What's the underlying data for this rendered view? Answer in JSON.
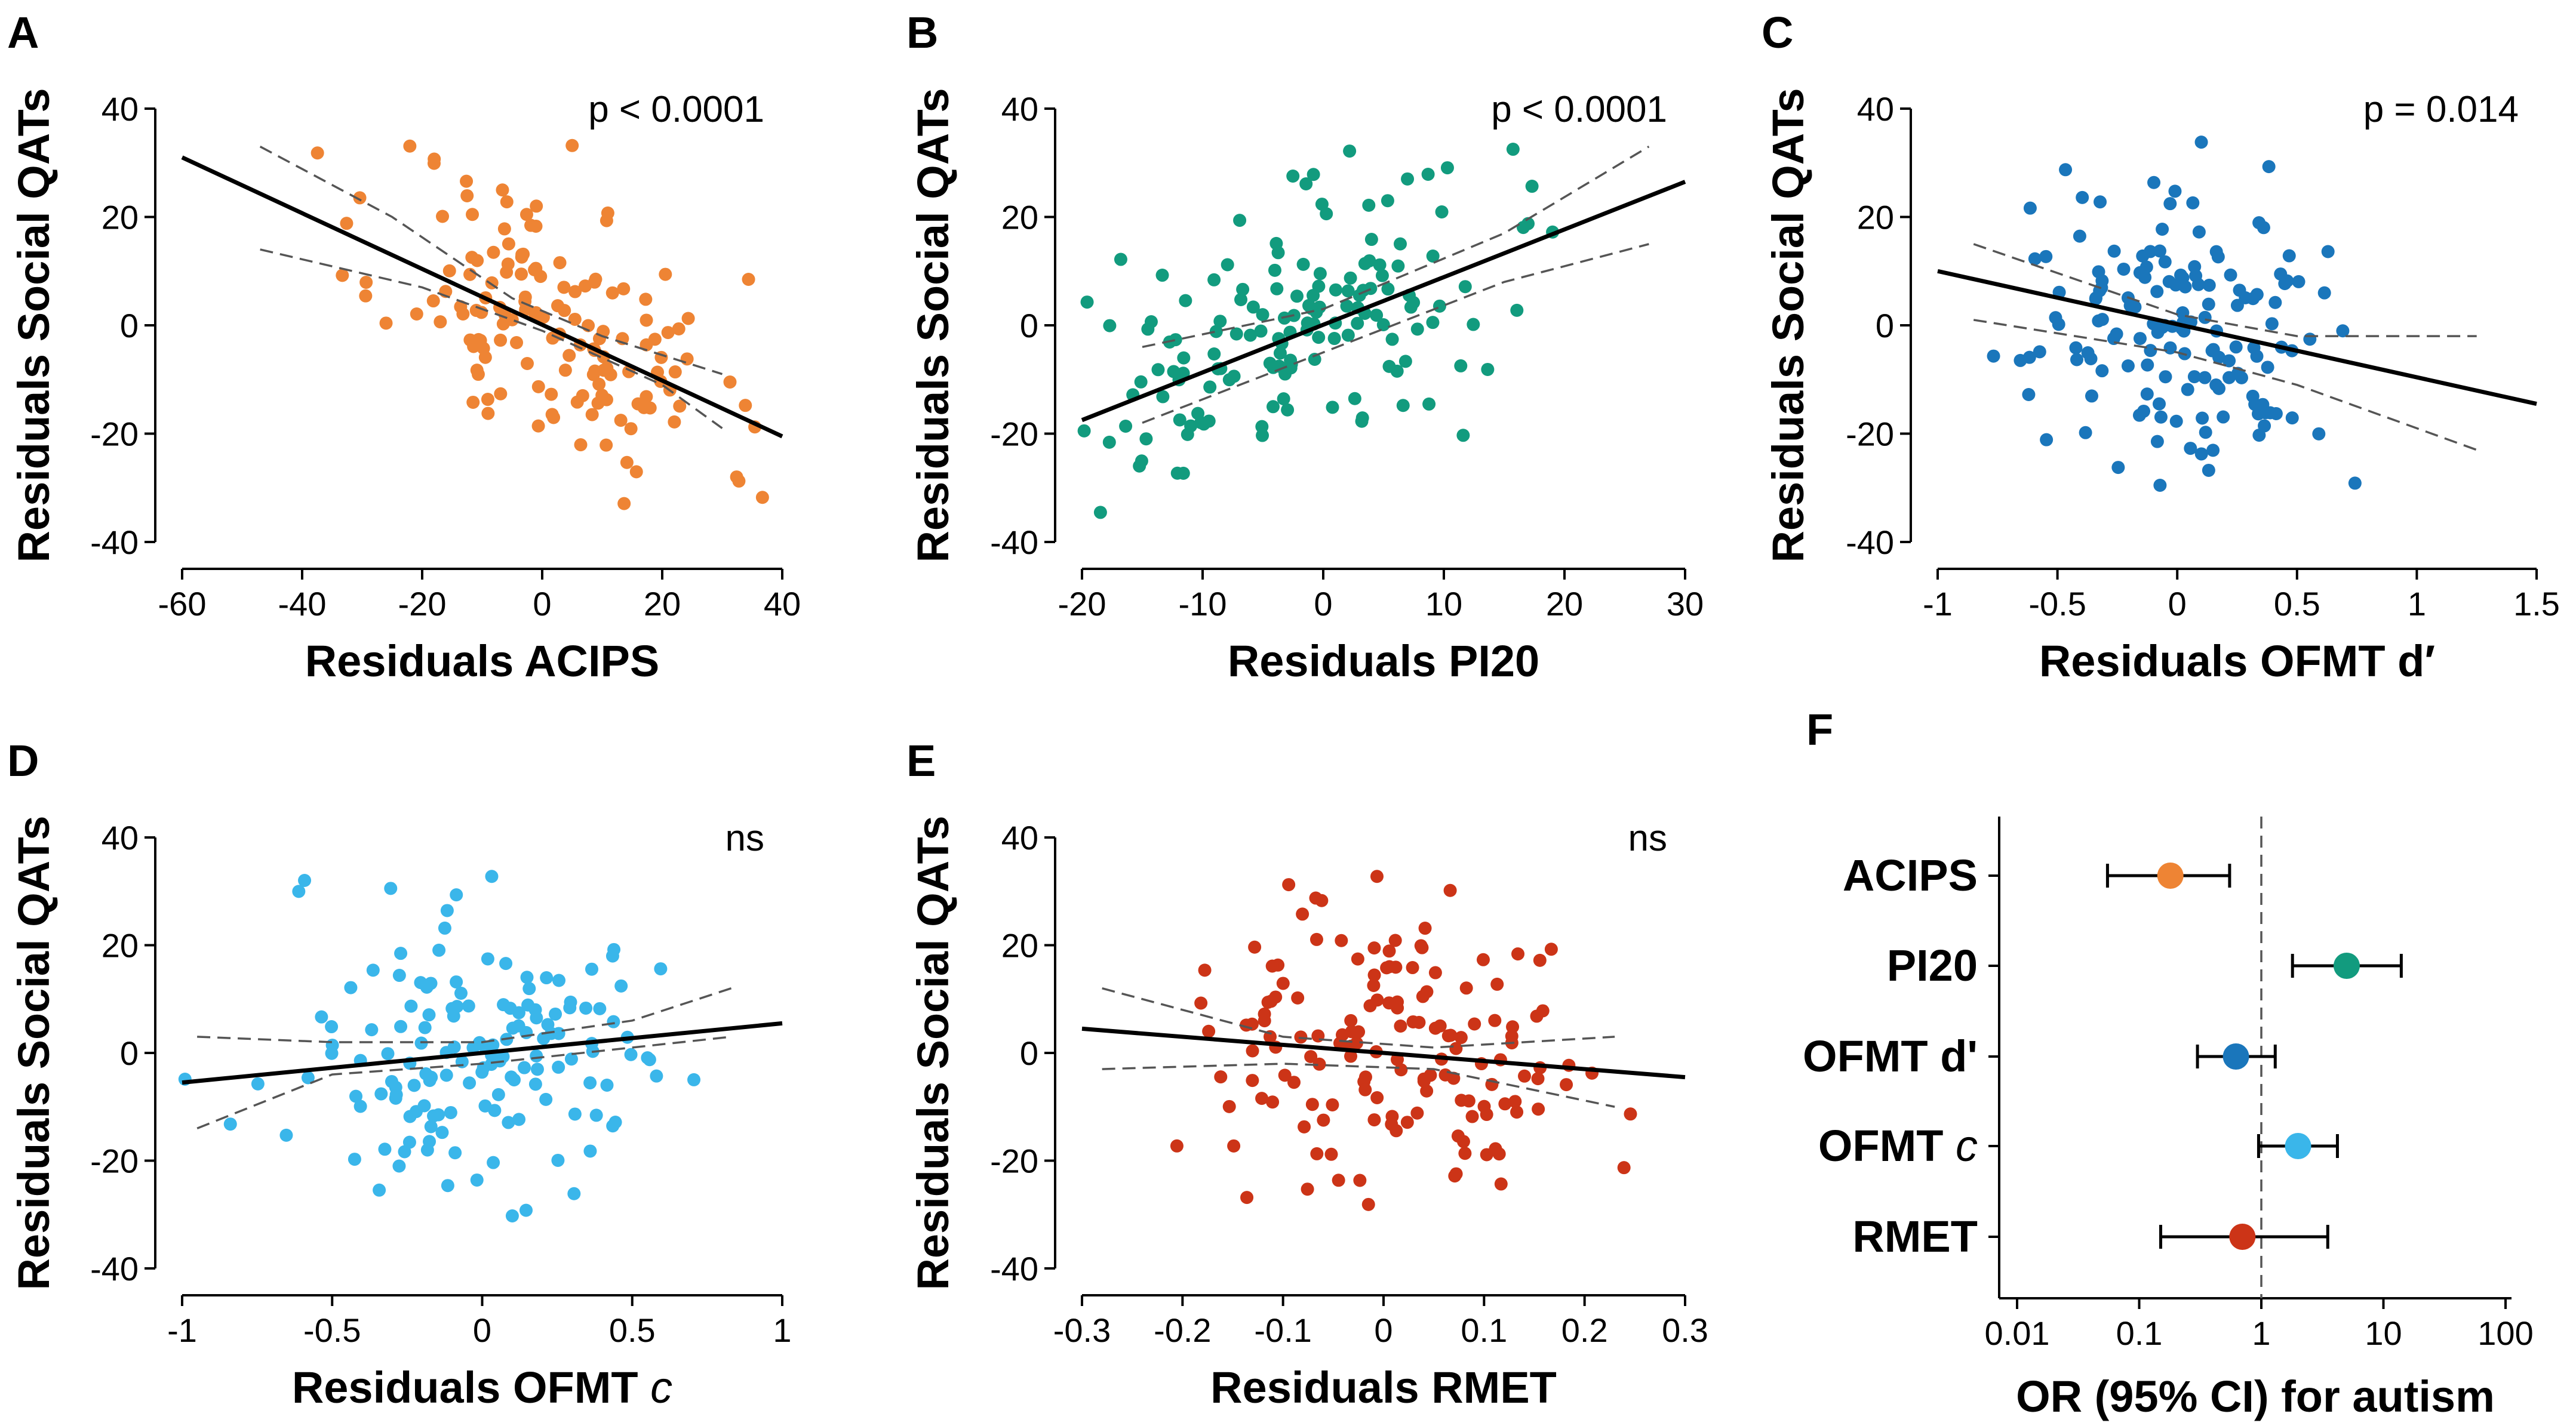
{
  "chart_data": [
    {
      "type": "scatter",
      "panel_label": "A",
      "xlabel": "Residuals ACIPS",
      "ylabel": "Residuals Social QATs",
      "xlim": [
        -60,
        40
      ],
      "ylim": [
        -40,
        40
      ],
      "xticks": [
        "-60",
        "-40",
        "-20",
        "0",
        "20",
        "40"
      ],
      "yticks": [
        "-40",
        "-20",
        "0",
        "20",
        "40"
      ],
      "annotation": "p < 0.0001",
      "color": "#ee8434",
      "fit_line": [
        [
          -60,
          31
        ],
        [
          40,
          -20.5
        ]
      ],
      "ci_lower": [
        [
          -47,
          14
        ],
        [
          -20,
          7
        ],
        [
          0,
          -1
        ],
        [
          20,
          -11
        ],
        [
          30,
          -19
        ]
      ],
      "ci_upper": [
        [
          -47,
          33
        ],
        [
          -25,
          20
        ],
        [
          -5,
          5
        ],
        [
          10,
          -2
        ],
        [
          30,
          -9
        ]
      ],
      "seed": 11,
      "n_points": 150,
      "cluster": {
        "x_mean": 2,
        "x_sd": 14,
        "slope": -0.52,
        "noise": 15
      }
    },
    {
      "type": "scatter",
      "panel_label": "B",
      "xlabel": "Residuals PI20",
      "ylabel": "Residuals Social QATs",
      "xlim": [
        -20,
        30
      ],
      "ylim": [
        -40,
        40
      ],
      "xticks": [
        "-20",
        "-10",
        "0",
        "10",
        "20",
        "30"
      ],
      "yticks": [
        "-40",
        "-20",
        "0",
        "20",
        "40"
      ],
      "annotation": "p < 0.0001",
      "color": "#129b7e",
      "fit_line": [
        [
          -20,
          -17.5
        ],
        [
          30,
          26.5
        ]
      ],
      "ci_lower": [
        [
          -15,
          -18
        ],
        [
          0,
          -5
        ],
        [
          15,
          8
        ],
        [
          27,
          15
        ]
      ],
      "ci_upper": [
        [
          -15,
          -4
        ],
        [
          0,
          3
        ],
        [
          15,
          17
        ],
        [
          27,
          33
        ]
      ],
      "seed": 22,
      "n_points": 150,
      "cluster": {
        "x_mean": -2,
        "x_sd": 8.5,
        "slope": 0.88,
        "noise": 14
      }
    },
    {
      "type": "scatter",
      "panel_label": "C",
      "xlabel": "Residuals OFMT d′",
      "ylabel": "Residuals Social QATs",
      "xlim": [
        -1,
        1.5
      ],
      "ylim": [
        -40,
        40
      ],
      "xticks": [
        "-1",
        "-0.5",
        "0",
        "0.5",
        "1",
        "1.5"
      ],
      "yticks": [
        "-40",
        "-20",
        "0",
        "20",
        "40"
      ],
      "annotation": "p = 0.014",
      "color": "#1a76bb",
      "fit_line": [
        [
          -1,
          10
        ],
        [
          1.5,
          -14.5
        ]
      ],
      "ci_lower": [
        [
          -0.85,
          1
        ],
        [
          0,
          -5
        ],
        [
          0.5,
          -11
        ],
        [
          1.25,
          -23
        ]
      ],
      "ci_upper": [
        [
          -0.85,
          15
        ],
        [
          0,
          2
        ],
        [
          0.5,
          -2
        ],
        [
          1.25,
          -2
        ]
      ],
      "seed": 33,
      "n_points": 150,
      "cluster": {
        "x_mean": 0,
        "x_sd": 0.32,
        "slope": -10,
        "noise": 15
      }
    },
    {
      "type": "scatter",
      "panel_label": "D",
      "xlabel": "Residuals OFMT",
      "xlabel_italic": "c",
      "ylabel": "Residuals Social QATs",
      "xlim": [
        -1,
        1
      ],
      "ylim": [
        -40,
        40
      ],
      "xticks": [
        "-1",
        "-0.5",
        "0",
        "0.5",
        "1"
      ],
      "yticks": [
        "-40",
        "-20",
        "0",
        "20",
        "40"
      ],
      "annotation": "ns",
      "color": "#3ab6ea",
      "fit_line": [
        [
          -1,
          -5.5
        ],
        [
          1,
          5.5
        ]
      ],
      "ci_lower": [
        [
          -0.95,
          -14
        ],
        [
          -0.5,
          -4
        ],
        [
          0,
          -2
        ],
        [
          0.5,
          1
        ],
        [
          0.83,
          3
        ]
      ],
      "ci_upper": [
        [
          -0.95,
          3
        ],
        [
          -0.5,
          2
        ],
        [
          0,
          2
        ],
        [
          0.5,
          6
        ],
        [
          0.83,
          12
        ]
      ],
      "seed": 44,
      "n_points": 150,
      "cluster": {
        "x_mean": 0,
        "x_sd": 0.33,
        "slope": 5,
        "noise": 16
      }
    },
    {
      "type": "scatter",
      "panel_label": "E",
      "xlabel": "Residuals RMET",
      "ylabel": "Residuals Social QATs",
      "xlim": [
        -0.3,
        0.3
      ],
      "ylim": [
        -40,
        40
      ],
      "xticks": [
        "-0.3",
        "-0.2",
        "-0.1",
        "0",
        "0.1",
        "0.2",
        "0.3"
      ],
      "yticks": [
        "-40",
        "-20",
        "0",
        "20",
        "40"
      ],
      "annotation": "ns",
      "color": "#cc3417",
      "fit_line": [
        [
          -0.3,
          4.5
        ],
        [
          0.3,
          -4.5
        ]
      ],
      "ci_lower": [
        [
          -0.28,
          -3
        ],
        [
          -0.1,
          -2
        ],
        [
          0.05,
          -3
        ],
        [
          0.23,
          -10
        ]
      ],
      "ci_upper": [
        [
          -0.28,
          12
        ],
        [
          -0.1,
          3
        ],
        [
          0.05,
          1
        ],
        [
          0.23,
          3
        ]
      ],
      "seed": 55,
      "n_points": 150,
      "cluster": {
        "x_mean": 0,
        "x_sd": 0.1,
        "slope": -14,
        "noise": 16
      }
    },
    {
      "type": "forest",
      "panel_label": "F",
      "xlabel": "OR (95% CI) for autism",
      "xscale": "log",
      "xlim": [
        0.01,
        100
      ],
      "xticks": [
        "0.01",
        "0.1",
        "1",
        "10",
        "100"
      ],
      "reference_line": 1,
      "rows": [
        {
          "label": "ACIPS",
          "or": 0.18,
          "ci": [
            0.055,
            0.55
          ],
          "color": "#ee8434"
        },
        {
          "label": "PI20",
          "or": 5.0,
          "ci": [
            1.8,
            14
          ],
          "color": "#129b7e"
        },
        {
          "label": "OFMT d'",
          "or": 0.62,
          "ci": [
            0.3,
            1.3
          ],
          "color": "#1a76bb"
        },
        {
          "label": "OFMT",
          "label_italic": "c",
          "or": 2.0,
          "ci": [
            0.95,
            4.2
          ],
          "color": "#3ab6ea"
        },
        {
          "label": "RMET",
          "or": 0.7,
          "ci": [
            0.15,
            3.5
          ],
          "color": "#cc3417"
        }
      ]
    }
  ]
}
